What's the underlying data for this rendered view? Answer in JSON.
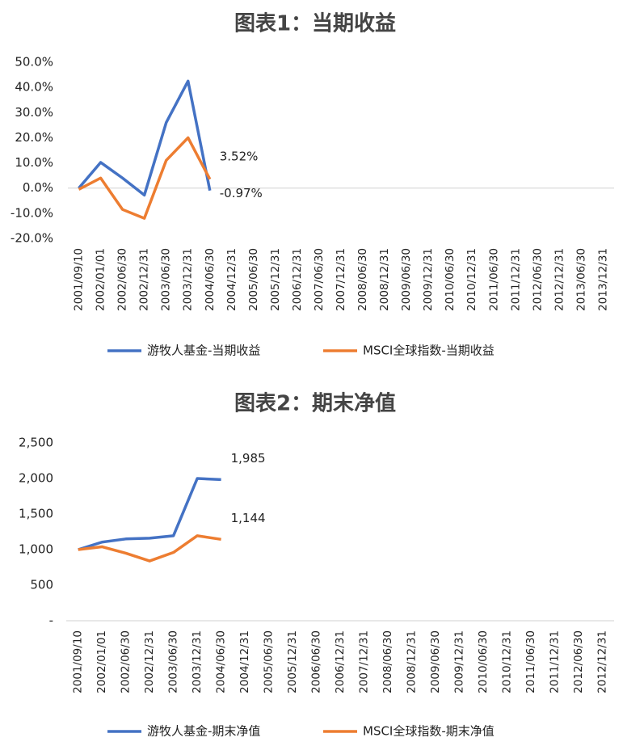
{
  "chart_data": [
    {
      "type": "line",
      "title": "图表1：当期收益",
      "categories": [
        "2001/09/10",
        "2002/01/01",
        "2002/06/30",
        "2002/12/31",
        "2003/06/30",
        "2003/12/31",
        "2004/06/30",
        "2004/12/31",
        "2005/06/30",
        "2005/12/31",
        "2006/12/31",
        "2007/06/30",
        "2007/12/31",
        "2008/06/30",
        "2008/12/31",
        "2009/06/30",
        "2009/12/31",
        "2010/06/30",
        "2010/12/31",
        "2011/06/30",
        "2011/12/31",
        "2012/06/30",
        "2012/12/31",
        "2013/06/30",
        "2013/12/31"
      ],
      "series": [
        {
          "name": "游牧人基金-当期收益",
          "color": "#4472c4",
          "values": [
            0,
            10.2,
            4,
            -2.8,
            26,
            42.5,
            -0.97,
            null,
            null,
            null,
            null,
            null,
            null,
            null,
            null,
            null,
            null,
            null,
            null,
            null,
            null,
            null,
            null,
            null,
            null
          ],
          "value_labels": [
            null,
            null,
            null,
            null,
            null,
            null,
            "-0.97%",
            null,
            null,
            null,
            null,
            null,
            null,
            null,
            null,
            null,
            null,
            null,
            null,
            null,
            null,
            null,
            null,
            null,
            null
          ]
        },
        {
          "name": "MSCI全球指数-当期收益",
          "color": "#ed7d31",
          "values": [
            -0.5,
            4,
            -8.5,
            -12,
            11,
            20,
            3.52,
            null,
            null,
            null,
            null,
            null,
            null,
            null,
            null,
            null,
            null,
            null,
            null,
            null,
            null,
            null,
            null,
            null,
            null
          ],
          "value_labels": [
            null,
            null,
            null,
            null,
            null,
            null,
            "3.52%",
            null,
            null,
            null,
            null,
            null,
            null,
            null,
            null,
            null,
            null,
            null,
            null,
            null,
            null,
            null,
            null,
            null,
            null
          ]
        }
      ],
      "ylim": [
        -20,
        50
      ],
      "yticks": [
        {
          "value": -20,
          "label": "-20.0%"
        },
        {
          "value": -10,
          "label": "-10.0%"
        },
        {
          "value": 0,
          "label": "0.0%"
        },
        {
          "value": 10,
          "label": "10.0%"
        },
        {
          "value": 20,
          "label": "20.0%"
        },
        {
          "value": 30,
          "label": "30.0%"
        },
        {
          "value": 40,
          "label": "40.0%"
        },
        {
          "value": 50,
          "label": "50.0%"
        }
      ],
      "grid": false,
      "legend": "bottom"
    },
    {
      "type": "line",
      "title": "图表2：期末净值",
      "categories": [
        "2001/09/10",
        "2002/01/01",
        "2002/06/30",
        "2002/12/31",
        "2003/06/30",
        "2003/12/31",
        "2004/06/30",
        "2004/12/31",
        "2005/06/30",
        "2005/12/31",
        "2006/06/30",
        "2006/12/31",
        "2007/12/31",
        "2008/06/30",
        "2008/12/31",
        "2009/06/30",
        "2009/12/31",
        "2010/06/30",
        "2010/12/31",
        "2011/06/30",
        "2011/12/31",
        "2012/06/30",
        "2012/12/31"
      ],
      "series": [
        {
          "name": "游牧人基金-期末净值",
          "color": "#4472c4",
          "values": [
            1000,
            1105,
            1150,
            1160,
            1195,
            2000,
            1985,
            null,
            null,
            null,
            null,
            null,
            null,
            null,
            null,
            null,
            null,
            null,
            null,
            null,
            null,
            null,
            null
          ],
          "value_labels": [
            null,
            null,
            null,
            null,
            null,
            null,
            "1,985",
            null,
            null,
            null,
            null,
            null,
            null,
            null,
            null,
            null,
            null,
            null,
            null,
            null,
            null,
            null,
            null
          ]
        },
        {
          "name": "MSCI全球指数-期末净值",
          "color": "#ed7d31",
          "values": [
            1000,
            1040,
            950,
            840,
            960,
            1195,
            1144,
            null,
            null,
            null,
            null,
            null,
            null,
            null,
            null,
            null,
            null,
            null,
            null,
            null,
            null,
            null,
            null
          ],
          "value_labels": [
            null,
            null,
            null,
            null,
            null,
            null,
            "1,144",
            null,
            null,
            null,
            null,
            null,
            null,
            null,
            null,
            null,
            null,
            null,
            null,
            null,
            null,
            null,
            null
          ]
        }
      ],
      "ylim": [
        0,
        2500
      ],
      "yticks": [
        {
          "value": 0,
          "label": "-"
        },
        500,
        {
          "value": 1000,
          "label": "1,000"
        },
        {
          "value": 1500,
          "label": "1,500"
        },
        {
          "value": 2000,
          "label": "2,000"
        },
        {
          "value": 2500,
          "label": "2,500"
        }
      ],
      "grid": false,
      "legend": "bottom"
    }
  ]
}
